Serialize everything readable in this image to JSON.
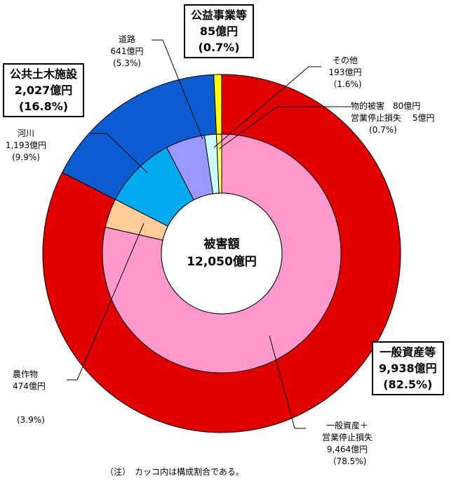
{
  "chart_data": {
    "type": "pie",
    "total": {
      "label": "被害額",
      "value_text": "12,050億円",
      "value": 12050,
      "unit": "億円"
    },
    "outer_ring": [
      {
        "name": "一般資産等",
        "value": 9938,
        "value_text": "9,938億円",
        "percent_text": "(82.5%)",
        "color": "#e00000"
      },
      {
        "name": "公共土木施設",
        "value": 2027,
        "value_text": "2,027億円",
        "percent_text": "(16.8%)",
        "color": "#0a5cd0"
      },
      {
        "name": "公益事業等",
        "value": 85,
        "value_text": "85億円",
        "percent_text": "(0.7%)",
        "color": "#ffff00"
      }
    ],
    "inner_ring": [
      {
        "name": "一般資産＋営業停止損失",
        "line1": "一般資産＋",
        "line2": "営業停止損失",
        "value": 9464,
        "value_text": "9,464億円",
        "percent_text": "（78.5%)",
        "color": "#ff99cc"
      },
      {
        "name": "農作物",
        "value": 474,
        "value_text": "474億円",
        "percent_text": "(3.9%)",
        "color": "#ffcc99"
      },
      {
        "name": "河川",
        "value": 1193,
        "value_text": "1,193億円",
        "percent_text": "(9.9%)",
        "color": "#00aaee"
      },
      {
        "name": "道路",
        "value": 641,
        "value_text": "641億円",
        "percent_text": "(5.3%)",
        "color": "#9999ff"
      },
      {
        "name": "その他",
        "value": 193,
        "value_text": "193億円",
        "percent_text": "（1.6%)",
        "color": "#ccffff"
      },
      {
        "name": "物的被害・営業停止損失",
        "line1": "物的被害　80億円",
        "line2": "営業停止損失　 5億円",
        "value": 85,
        "percent_text": "(0.7%)",
        "color": "#ffff66"
      }
    ],
    "note": "（注）　カッコ内は構成割合である。"
  },
  "colors": {
    "outline": "#000000",
    "hole": "#ffffff"
  }
}
